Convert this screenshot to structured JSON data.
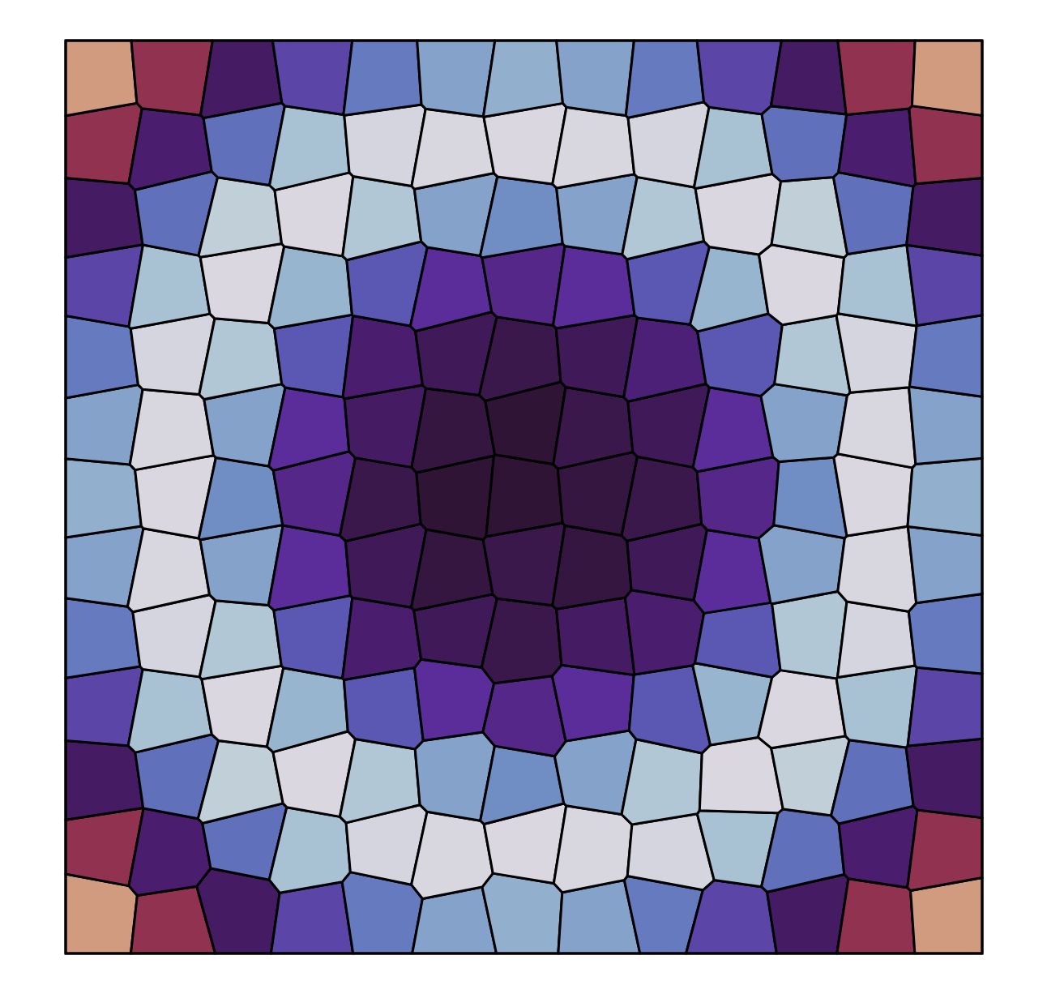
{
  "chart_data": {
    "type": "voronoi",
    "xlim": [
      0,
      1
    ],
    "ylim": [
      0,
      1
    ],
    "color_range": [
      0,
      1
    ],
    "tick_labels": false,
    "x": [
      0.03,
      0.12,
      0.185,
      0.275,
      0.34,
      0.43,
      0.495,
      0.585,
      0.65,
      0.725,
      0.815,
      0.88,
      0.968,
      0.045,
      0.108,
      0.2,
      0.262,
      0.355,
      0.415,
      0.508,
      0.57,
      0.66,
      0.738,
      0.8,
      0.893,
      0.955,
      0.035,
      0.125,
      0.186,
      0.278,
      0.338,
      0.43,
      0.492,
      0.584,
      0.646,
      0.74,
      0.812,
      0.878,
      0.965,
      0.042,
      0.11,
      0.198,
      0.26,
      0.352,
      0.418,
      0.505,
      0.572,
      0.662,
      0.725,
      0.802,
      0.89,
      0.958,
      0.032,
      0.122,
      0.188,
      0.275,
      0.34,
      0.428,
      0.495,
      0.582,
      0.648,
      0.736,
      0.815,
      0.88,
      0.966,
      0.044,
      0.108,
      0.196,
      0.262,
      0.354,
      0.416,
      0.506,
      0.57,
      0.66,
      0.724,
      0.8,
      0.892,
      0.956,
      0.034,
      0.124,
      0.185,
      0.278,
      0.338,
      0.432,
      0.494,
      0.585,
      0.645,
      0.738,
      0.812,
      0.878,
      0.965,
      0.042,
      0.112,
      0.2,
      0.262,
      0.352,
      0.418,
      0.508,
      0.57,
      0.662,
      0.725,
      0.805,
      0.89,
      0.958,
      0.03,
      0.12,
      0.188,
      0.276,
      0.34,
      0.43,
      0.492,
      0.584,
      0.648,
      0.74,
      0.815,
      0.882,
      0.968,
      0.045,
      0.108,
      0.196,
      0.264,
      0.355,
      0.415,
      0.505,
      0.572,
      0.66,
      0.724,
      0.8,
      0.892,
      0.955,
      0.034,
      0.125,
      0.186,
      0.278,
      0.338,
      0.43,
      0.494,
      0.584,
      0.646,
      0.738,
      0.812,
      0.878,
      0.965,
      0.042,
      0.11,
      0.2,
      0.262,
      0.352,
      0.418,
      0.506,
      0.572,
      0.662,
      0.726,
      0.805,
      0.89,
      0.958,
      0.03,
      0.12,
      0.188,
      0.275,
      0.342,
      0.43,
      0.495,
      0.584,
      0.648,
      0.738,
      0.812,
      0.882,
      0.968
    ],
    "y": [
      0.04,
      0.03,
      0.048,
      0.035,
      0.045,
      0.028,
      0.042,
      0.036,
      0.05,
      0.03,
      0.044,
      0.034,
      0.04,
      0.12,
      0.108,
      0.125,
      0.11,
      0.118,
      0.105,
      0.122,
      0.112,
      0.104,
      0.124,
      0.11,
      0.12,
      0.112,
      0.185,
      0.198,
      0.182,
      0.2,
      0.188,
      0.196,
      0.184,
      0.202,
      0.19,
      0.186,
      0.2,
      0.184,
      0.195,
      0.275,
      0.262,
      0.278,
      0.265,
      0.272,
      0.28,
      0.26,
      0.274,
      0.266,
      0.28,
      0.262,
      0.276,
      0.268,
      0.34,
      0.352,
      0.338,
      0.35,
      0.342,
      0.355,
      0.34,
      0.348,
      0.356,
      0.34,
      0.35,
      0.342,
      0.352,
      0.428,
      0.415,
      0.43,
      0.418,
      0.426,
      0.414,
      0.43,
      0.42,
      0.428,
      0.416,
      0.43,
      0.418,
      0.425,
      0.495,
      0.505,
      0.492,
      0.508,
      0.496,
      0.504,
      0.498,
      0.506,
      0.494,
      0.502,
      0.496,
      0.507,
      0.5,
      0.582,
      0.57,
      0.585,
      0.572,
      0.58,
      0.568,
      0.584,
      0.574,
      0.583,
      0.57,
      0.586,
      0.572,
      0.578,
      0.648,
      0.66,
      0.646,
      0.658,
      0.65,
      0.662,
      0.648,
      0.656,
      0.645,
      0.66,
      0.65,
      0.662,
      0.652,
      0.736,
      0.725,
      0.74,
      0.726,
      0.735,
      0.722,
      0.738,
      0.728,
      0.74,
      0.724,
      0.736,
      0.726,
      0.734,
      0.802,
      0.815,
      0.8,
      0.812,
      0.804,
      0.816,
      0.802,
      0.812,
      0.8,
      0.815,
      0.804,
      0.816,
      0.806,
      0.89,
      0.878,
      0.892,
      0.88,
      0.888,
      0.876,
      0.892,
      0.88,
      0.89,
      0.878,
      0.892,
      0.88,
      0.886,
      0.958,
      0.966,
      0.955,
      0.968,
      0.96,
      0.966,
      0.956,
      0.965,
      0.958,
      0.968,
      0.956,
      0.964,
      0.96
    ],
    "values": [
      0.86,
      0.66,
      0.46,
      0.36,
      0.27,
      0.21,
      0.19,
      0.21,
      0.27,
      0.36,
      0.46,
      0.66,
      0.86,
      0.66,
      0.45,
      0.29,
      0.15,
      0.04,
      0.03,
      0.02,
      0.03,
      0.04,
      0.15,
      0.29,
      0.45,
      0.66,
      0.46,
      0.29,
      0.1,
      0.02,
      0.13,
      0.21,
      0.24,
      0.21,
      0.13,
      0.02,
      0.1,
      0.29,
      0.46,
      0.36,
      0.15,
      0.02,
      0.18,
      0.33,
      0.4,
      0.42,
      0.4,
      0.33,
      0.18,
      0.02,
      0.15,
      0.36,
      0.27,
      0.04,
      0.13,
      0.33,
      0.45,
      0.47,
      0.48,
      0.46,
      0.45,
      0.33,
      0.13,
      0.04,
      0.27,
      0.21,
      0.03,
      0.21,
      0.4,
      0.47,
      0.49,
      0.48,
      0.49,
      0.47,
      0.4,
      0.21,
      0.03,
      0.21,
      0.19,
      0.02,
      0.24,
      0.42,
      0.48,
      0.5,
      0.5,
      0.49,
      0.48,
      0.42,
      0.24,
      0.02,
      0.19,
      0.21,
      0.03,
      0.21,
      0.4,
      0.46,
      0.49,
      0.5,
      0.48,
      0.47,
      0.4,
      0.21,
      0.03,
      0.21,
      0.27,
      0.04,
      0.13,
      0.33,
      0.45,
      0.47,
      0.48,
      0.47,
      0.44,
      0.33,
      0.13,
      0.04,
      0.27,
      0.36,
      0.15,
      0.02,
      0.18,
      0.33,
      0.4,
      0.42,
      0.4,
      0.33,
      0.18,
      0.02,
      0.15,
      0.36,
      0.46,
      0.29,
      0.1,
      0.02,
      0.13,
      0.21,
      0.24,
      0.21,
      0.13,
      0.02,
      0.1,
      0.29,
      0.46,
      0.66,
      0.45,
      0.29,
      0.15,
      0.04,
      0.03,
      0.02,
      0.03,
      0.04,
      0.15,
      0.29,
      0.45,
      0.66,
      0.86,
      0.66,
      0.46,
      0.36,
      0.27,
      0.21,
      0.19,
      0.21,
      0.27,
      0.36,
      0.46,
      0.66,
      0.86
    ]
  }
}
